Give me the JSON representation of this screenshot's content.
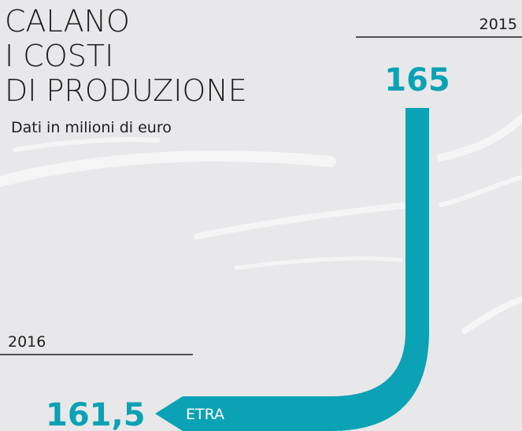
{
  "title": [
    "CALANO",
    "I COSTI",
    "DI PRODUZIONE"
  ],
  "subtitle": "Dati in milioni di euro",
  "items": [
    {
      "year": "2015",
      "value": "165"
    },
    {
      "year": "2016",
      "value": "161,5",
      "label": "ETRA"
    }
  ]
}
